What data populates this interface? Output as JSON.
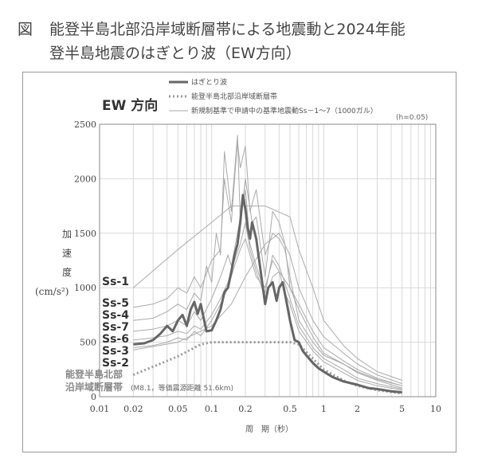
{
  "caption": {
    "mark": "図",
    "line1": "能登半島北部沿岸域断層帯による地震動と2024年能",
    "line2": "登半島地震のはぎとり波（EW方向）"
  },
  "chart_data": {
    "type": "line",
    "title": "EW 方向",
    "xlabel": "周　期（秒）",
    "ylabel": [
      "加",
      "速",
      "度"
    ],
    "yunit": "(cm/s²)",
    "h_note": "(h=0.05)",
    "xscale": "log",
    "xlim": [
      0.01,
      10
    ],
    "ylim": [
      0,
      2500
    ],
    "xticks": [
      "0.01",
      "0.02",
      "0.05",
      "0.1",
      "0.2",
      "0.5",
      "1",
      "2",
      "5",
      "10"
    ],
    "yticks": [
      "0",
      "500",
      "1000",
      "1500",
      "2000",
      "2500"
    ],
    "legend": [
      "はぎとり波",
      "能登半島北部沿岸域断層帯",
      "新規制基準で申請中の基準地震動Ss－1〜7（1000ガル）"
    ],
    "ss_labels": [
      "Ss-1",
      "Ss-5",
      "Ss-4",
      "Ss-7",
      "Ss-6",
      "Ss-3",
      "Ss-2"
    ],
    "fault_label": [
      "能登半島北部",
      "沿岸域断層帯"
    ],
    "fault_note": "(M8.1，等価震源距離 51.6km)",
    "colors": {
      "hagitori": "#666666",
      "fault": "#999999",
      "ss": "#aaaaaa",
      "grid": "#d8d8d8"
    },
    "series": [
      {
        "name": "はぎとり波",
        "style": "thick",
        "x": [
          0.02,
          0.025,
          0.03,
          0.035,
          0.04,
          0.045,
          0.05,
          0.055,
          0.06,
          0.065,
          0.07,
          0.075,
          0.08,
          0.085,
          0.09,
          0.1,
          0.11,
          0.12,
          0.13,
          0.14,
          0.15,
          0.16,
          0.17,
          0.18,
          0.19,
          0.2,
          0.21,
          0.22,
          0.23,
          0.25,
          0.27,
          0.3,
          0.32,
          0.35,
          0.38,
          0.4,
          0.43,
          0.46,
          0.5,
          0.55,
          0.6,
          0.65,
          0.7,
          0.8,
          0.9,
          1.0,
          1.2,
          1.5,
          2.0,
          2.5,
          3.0,
          4.0,
          5.0
        ],
        "y": [
          480,
          490,
          520,
          580,
          650,
          600,
          700,
          750,
          650,
          800,
          870,
          760,
          850,
          720,
          600,
          610,
          700,
          800,
          960,
          1000,
          1150,
          1300,
          1400,
          1600,
          1850,
          1720,
          1550,
          1450,
          1600,
          1450,
          1200,
          850,
          1000,
          1050,
          880,
          1000,
          1050,
          900,
          700,
          520,
          500,
          420,
          380,
          310,
          260,
          230,
          180,
          140,
          110,
          80,
          70,
          50,
          40
        ]
      },
      {
        "name": "能登半島北部沿岸域断層帯",
        "style": "dotted",
        "x": [
          0.02,
          0.05,
          0.08,
          0.1,
          0.15,
          0.2,
          0.3,
          0.5,
          0.6,
          0.8,
          1.0,
          1.5,
          2.0,
          3.0,
          5.0
        ],
        "y": [
          200,
          370,
          480,
          500,
          500,
          500,
          500,
          500,
          480,
          350,
          250,
          150,
          100,
          60,
          30
        ]
      },
      {
        "name": "Ss-1",
        "style": "thin",
        "x": [
          0.02,
          0.05,
          0.1,
          0.15,
          0.2,
          0.3,
          0.5,
          0.6,
          0.8,
          1.0,
          1.5,
          2.0,
          3.0,
          5.0
        ],
        "y": [
          1000,
          1350,
          1600,
          1750,
          1750,
          1750,
          1650,
          1350,
          1000,
          700,
          470,
          350,
          230,
          150
        ]
      },
      {
        "name": "Ss-5",
        "style": "thin",
        "x": [
          0.02,
          0.03,
          0.04,
          0.05,
          0.06,
          0.07,
          0.08,
          0.1,
          0.12,
          0.13,
          0.15,
          0.17,
          0.18,
          0.2,
          0.22,
          0.25,
          0.3,
          0.35,
          0.4,
          0.45,
          0.5,
          0.6,
          0.8,
          1.0,
          1.5,
          2.0,
          3.0,
          5.0
        ],
        "y": [
          820,
          850,
          900,
          1000,
          950,
          1100,
          1000,
          1250,
          1350,
          2000,
          1600,
          2350,
          2100,
          2300,
          1700,
          1900,
          1300,
          1500,
          1450,
          1350,
          1100,
          700,
          500,
          380,
          300,
          220,
          150,
          80
        ]
      },
      {
        "name": "Ss-4",
        "style": "thin",
        "x": [
          0.02,
          0.03,
          0.04,
          0.05,
          0.06,
          0.07,
          0.08,
          0.09,
          0.1,
          0.11,
          0.12,
          0.13,
          0.15,
          0.17,
          0.18,
          0.2,
          0.23,
          0.25,
          0.3,
          0.35,
          0.4,
          0.45,
          0.5,
          0.6,
          0.8,
          1.0,
          1.5,
          2.0,
          3.0,
          5.0
        ],
        "y": [
          700,
          720,
          780,
          850,
          800,
          950,
          880,
          1200,
          1050,
          1500,
          1300,
          2250,
          1700,
          2400,
          1600,
          2000,
          1600,
          1650,
          1100,
          1700,
          1600,
          1400,
          1000,
          850,
          600,
          450,
          330,
          250,
          170,
          100
        ]
      },
      {
        "name": "Ss-7",
        "style": "thin",
        "x": [
          0.02,
          0.03,
          0.04,
          0.05,
          0.06,
          0.07,
          0.08,
          0.1,
          0.12,
          0.14,
          0.15,
          0.17,
          0.2,
          0.22,
          0.25,
          0.3,
          0.35,
          0.4,
          0.5,
          0.6,
          0.8,
          1.0,
          1.5,
          2.0,
          3.0,
          5.0
        ],
        "y": [
          600,
          620,
          650,
          700,
          650,
          780,
          700,
          900,
          1100,
          1300,
          1200,
          1500,
          1900,
          1400,
          1200,
          950,
          1300,
          1200,
          900,
          650,
          450,
          350,
          250,
          170,
          120,
          70
        ]
      },
      {
        "name": "Ss-6",
        "style": "thin",
        "x": [
          0.02,
          0.03,
          0.04,
          0.05,
          0.06,
          0.07,
          0.08,
          0.1,
          0.12,
          0.14,
          0.16,
          0.18,
          0.2,
          0.22,
          0.25,
          0.28,
          0.3,
          0.35,
          0.4,
          0.45,
          0.5,
          0.6,
          0.8,
          1.0,
          1.5,
          2.0,
          3.0,
          5.0
        ],
        "y": [
          520,
          540,
          560,
          600,
          580,
          650,
          620,
          750,
          900,
          1050,
          1250,
          1400,
          1600,
          1350,
          1150,
          1000,
          900,
          1100,
          1150,
          950,
          850,
          600,
          420,
          320,
          220,
          150,
          100,
          60
        ]
      },
      {
        "name": "Ss-3",
        "style": "thin",
        "x": [
          0.02,
          0.03,
          0.04,
          0.05,
          0.06,
          0.07,
          0.08,
          0.1,
          0.12,
          0.14,
          0.16,
          0.18,
          0.2,
          0.22,
          0.25,
          0.3,
          0.35,
          0.4,
          0.5,
          0.6,
          0.8,
          1.0,
          1.5,
          2.0,
          3.0,
          5.0
        ],
        "y": [
          450,
          470,
          500,
          540,
          520,
          600,
          560,
          700,
          850,
          1000,
          1200,
          1350,
          1450,
          1300,
          1100,
          1000,
          1250,
          1150,
          1000,
          800,
          550,
          400,
          300,
          230,
          160,
          100
        ]
      },
      {
        "name": "Ss-2",
        "style": "thin",
        "x": [
          0.02,
          0.05,
          0.1,
          0.15,
          0.2,
          0.3,
          0.4,
          0.5,
          0.6,
          0.8,
          1.0,
          1.5,
          2.0,
          3.0,
          5.0
        ],
        "y": [
          430,
          500,
          650,
          850,
          1100,
          1400,
          1500,
          1300,
          1000,
          700,
          550,
          400,
          300,
          200,
          120
        ]
      }
    ]
  }
}
